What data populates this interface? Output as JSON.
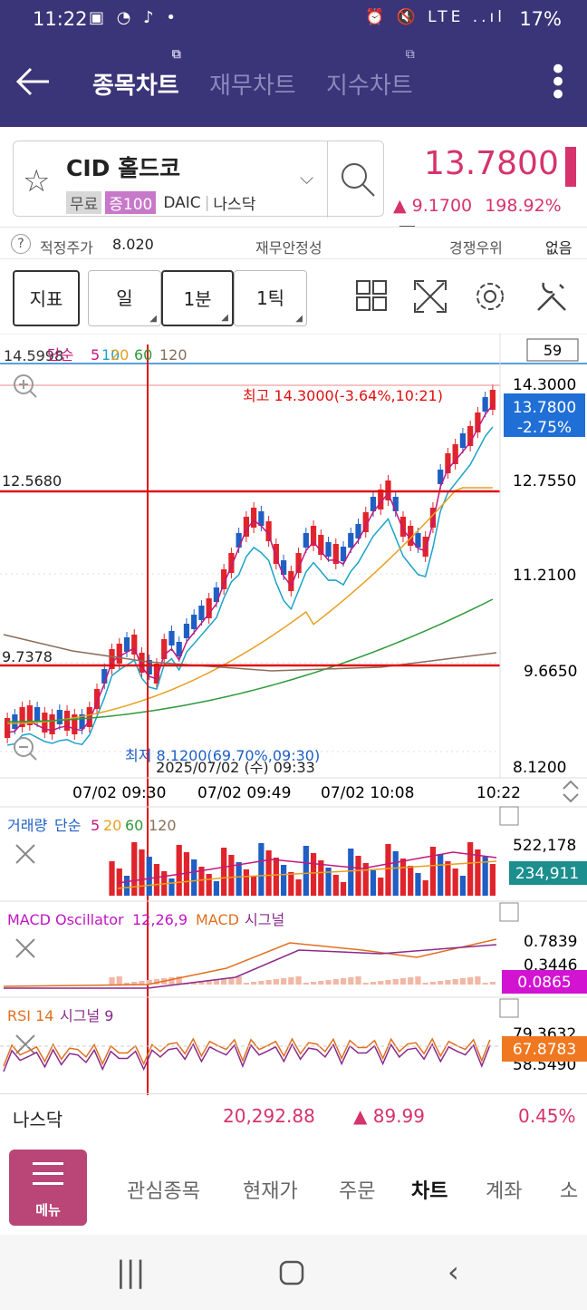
{
  "status": {
    "time": "11:22",
    "left_icons": "▣ ◔ ♪ •",
    "right_icons": "⏰ 🔇 LTE ..ıl",
    "battery": "17%"
  },
  "appbar": {
    "tabs": [
      {
        "label": "종목차트"
      },
      {
        "label": "재무차트"
      },
      {
        "label": "지수차트"
      }
    ]
  },
  "stock": {
    "name": "CID 홀드코",
    "tags": [
      "무료",
      "증100"
    ],
    "exchange_code": "DAIC",
    "market": "나스닥",
    "price": "13.7800",
    "change": "▲ 9.1700",
    "change_pct": "198.92%",
    "dash": "—"
  },
  "info": {
    "fair_label": "적정주가",
    "fair_value": "8.020",
    "stability": "재무안정성",
    "competitive": "경쟁우위",
    "none": "없음",
    "help": "?"
  },
  "toolbar": {
    "indicator": "지표",
    "period_day": "일",
    "period_1m": "1분",
    "period_1t": "1틱"
  },
  "chart": {
    "ma_legend": {
      "prefix": "단순",
      "p5": "5",
      "p10": "10",
      "p20": "20",
      "p60": "60",
      "p120": "120"
    },
    "cross_price_top": "14.5998",
    "count_box": "59",
    "y_ticks": [
      "14.3000",
      "12.7550",
      "11.2100",
      "9.6650",
      "8.1200"
    ],
    "last_price": "13.7800",
    "last_pct": "-2.75%",
    "high_label": "최고 14.3000(-3.64%,10:21)",
    "low_label": "최저 8.1200(69.70%,09:30)",
    "cross_label_1": "12.5680",
    "cross_label_2": "9.7378",
    "cursor_time": "2025/07/02 (수) 09:33",
    "x_ticks": [
      "07/02 09:30",
      "07/02 09:49",
      "07/02 10:08",
      "10:22"
    ],
    "volume": {
      "label": "거래량",
      "mode": "단순",
      "p5": "5",
      "p20": "20",
      "p60": "60",
      "p120": "120",
      "tick_top": "522,178",
      "last": "234,911"
    },
    "macd": {
      "name": "MACD Oscillator",
      "params": "12,26,9",
      "macd": "MACD",
      "signal": "시그널",
      "tick_top": "0.7839",
      "tick_mid": "0.3446",
      "last": "0.0865"
    },
    "rsi": {
      "name": "RSI 14",
      "signal": "시그널 9",
      "tick_top": "79.3632",
      "tick_bottom": "58.5490",
      "last": "67.8783"
    },
    "colors": {
      "up": "#e0242b",
      "down": "#1f5fc4",
      "ma5": "#c2187c",
      "ma10": "#1aa3c8",
      "ma20": "#e6a020",
      "ma60": "#2e9a3a",
      "ma120": "#8a6e5a",
      "cursor": "#e01010",
      "last_box": "#1f6fd6",
      "macd_box": "#d214d2",
      "rsi_box": "#f07820",
      "vol_box": "#1c8e8e"
    }
  },
  "index_bar": {
    "name": "나스닥",
    "value": "20,292.88",
    "change": "▲ 89.99",
    "pct": "0.45%"
  },
  "nav": {
    "menu": "메뉴",
    "items": [
      "관심종목",
      "현재가",
      "주문",
      "차트",
      "계좌",
      "소"
    ]
  }
}
